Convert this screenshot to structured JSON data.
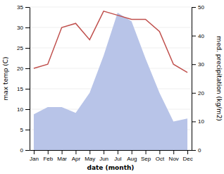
{
  "chart_data": {
    "type": "line",
    "xlabel": "date (month)",
    "ylabel": "max temp (C)",
    "y2label": "med. precipitation (kg/m2)",
    "categories": [
      "Jan",
      "Feb",
      "Mar",
      "Apr",
      "May",
      "Jun",
      "Jul",
      "Aug",
      "Sep",
      "Oct",
      "Nov",
      "Dec"
    ],
    "series": [
      {
        "type": "area",
        "axis": "y2",
        "color": "#b8c4e8",
        "values": [
          12.5,
          15.0,
          15.0,
          13.0,
          20.0,
          33.0,
          48.0,
          45.0,
          32.0,
          20.0,
          10.0,
          11.0
        ]
      },
      {
        "type": "line",
        "color": "#c0504d",
        "values": [
          20.0,
          21.0,
          30.0,
          31.0,
          27.0,
          34.0,
          33.0,
          32.0,
          32.0,
          29.0,
          21.0,
          19.0
        ]
      }
    ],
    "ylim": [
      0,
      35
    ],
    "yticks": [
      0,
      5,
      10,
      15,
      20,
      25,
      30,
      35
    ],
    "y2lim": [
      0,
      50
    ],
    "y2ticks": [
      0,
      10,
      20,
      30,
      40,
      50
    ],
    "grid": true
  }
}
